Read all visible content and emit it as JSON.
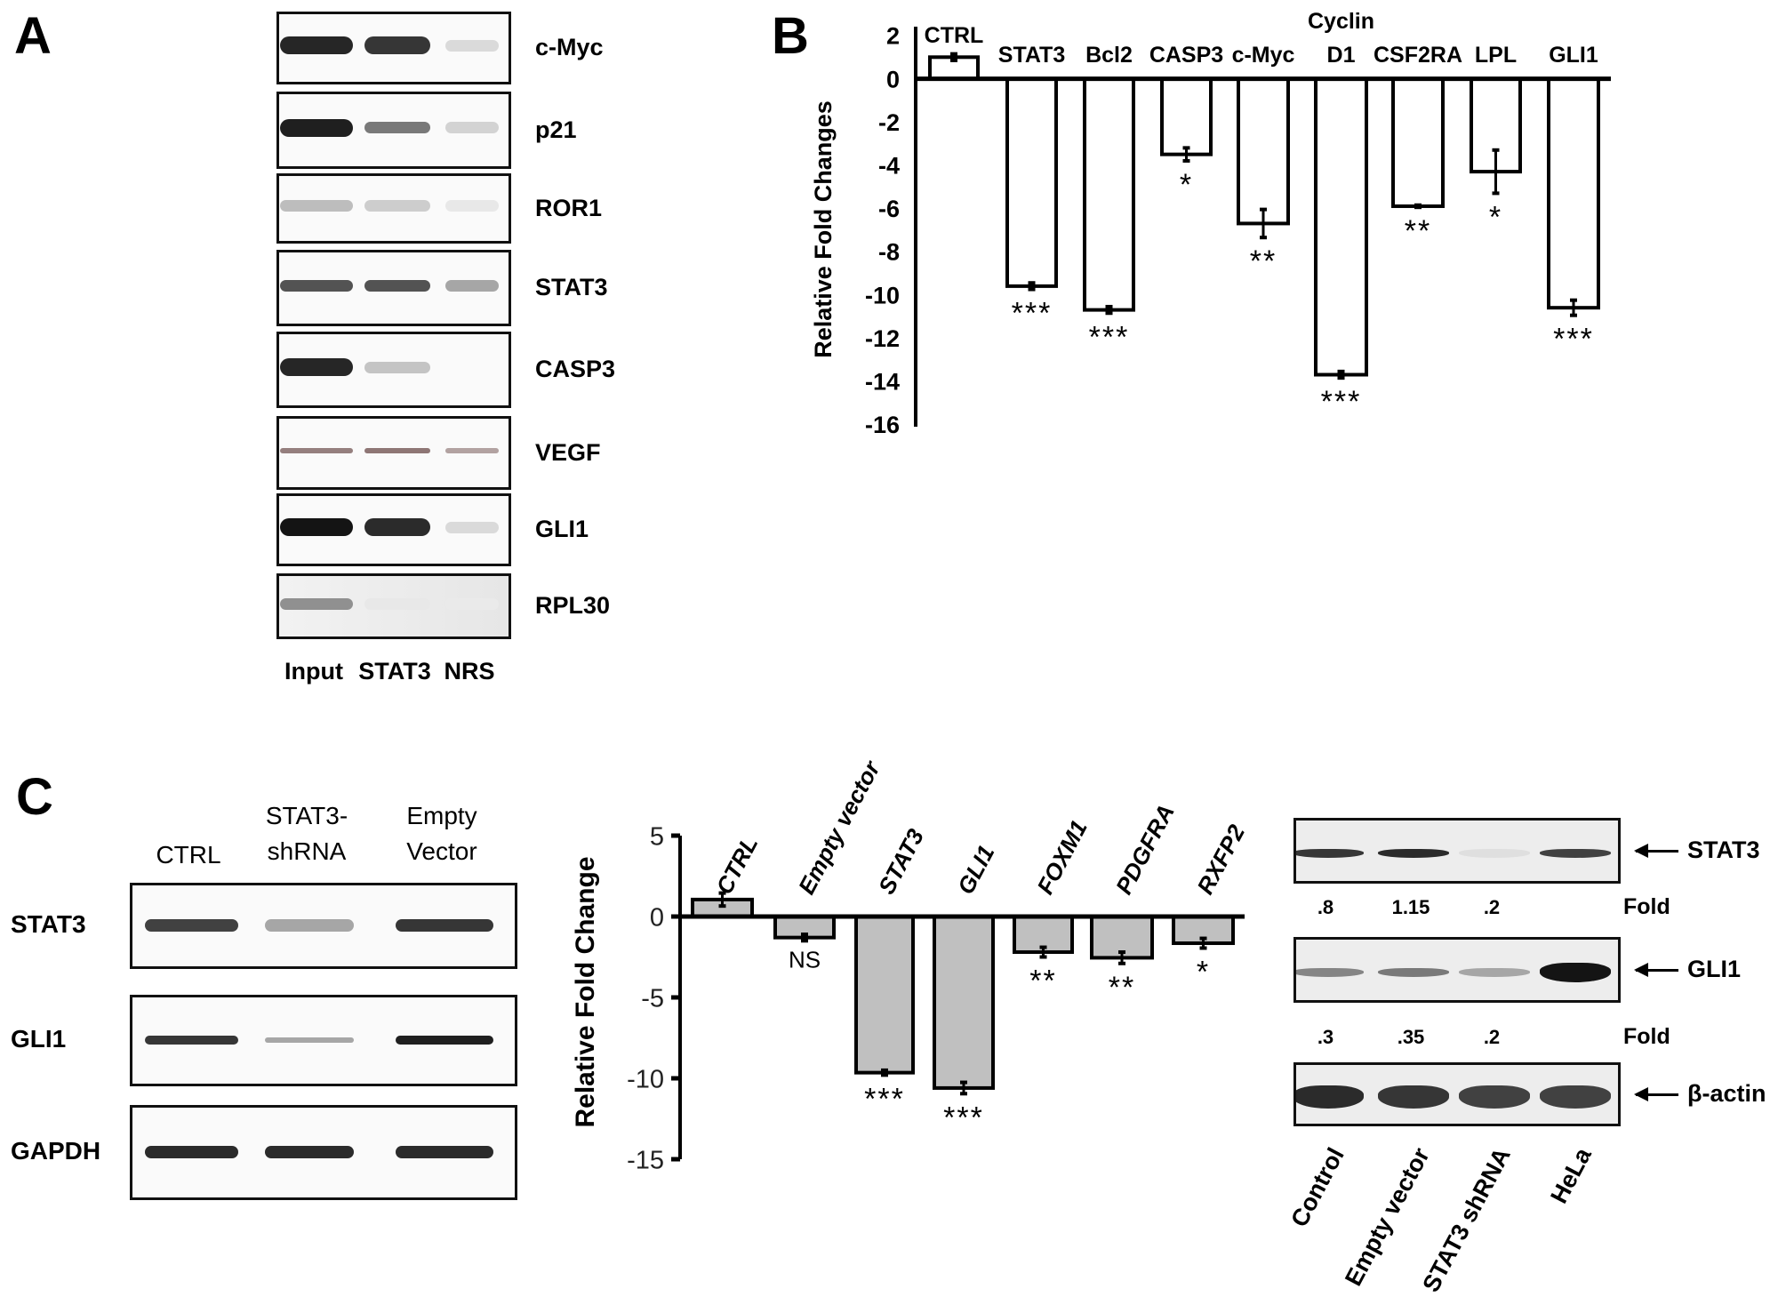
{
  "panels": {
    "A": {
      "letter": "A",
      "rows": [
        {
          "label": "c-Myc",
          "bands": [
            0.92,
            0.85,
            0.12
          ]
        },
        {
          "label": "p21",
          "bands": [
            0.95,
            0.55,
            0.15
          ]
        },
        {
          "label": "ROR1",
          "bands": [
            0.25,
            0.18,
            0.06
          ]
        },
        {
          "label": "STAT3",
          "bands": [
            0.72,
            0.72,
            0.35
          ]
        },
        {
          "label": "CASP3",
          "bands": [
            0.92,
            0.22,
            0.0
          ]
        },
        {
          "label": "VEGF",
          "bands": [
            0.7,
            0.75,
            0.5
          ]
        },
        {
          "label": "GLI1",
          "bands": [
            1.0,
            0.9,
            0.12
          ]
        },
        {
          "label": "RPL30",
          "bands": [
            0.45,
            0.06,
            0.05
          ]
        }
      ],
      "lanes": [
        "Input",
        "STAT3",
        "NRS"
      ]
    },
    "B": {
      "letter": "B"
    },
    "C": {
      "letter": "C",
      "left_blot": {
        "columns": [
          {
            "line1": "",
            "line2": "CTRL"
          },
          {
            "line1": "STAT3-",
            "line2": "shRNA"
          },
          {
            "line1": "Empty",
            "line2": "Vector"
          }
        ],
        "rows": [
          {
            "label": "STAT3",
            "bands": [
              0.8,
              0.35,
              0.85
            ]
          },
          {
            "label": "GLI1",
            "bands": [
              0.85,
              0.35,
              0.95
            ]
          },
          {
            "label": "GAPDH",
            "bands": [
              0.9,
              0.9,
              0.9
            ]
          }
        ]
      },
      "right_blot": {
        "rows": [
          {
            "label": "STAT3",
            "bands": [
              0.85,
              0.9,
              0.1,
              0.8
            ]
          },
          {
            "label": "GLI1",
            "bands": [
              0.5,
              0.55,
              0.35,
              1.0
            ]
          },
          {
            "label": "β-actin",
            "bands": [
              0.9,
              0.85,
              0.8,
              0.8
            ]
          }
        ],
        "fold_rows": [
          {
            "values": [
              ".8",
              "1.15",
              ".2"
            ],
            "label": "Fold"
          },
          {
            "values": [
              ".3",
              ".35",
              ".2"
            ],
            "label": "Fold"
          }
        ],
        "lanes": [
          "Control",
          "Empty vector",
          "STAT3 shRNA",
          "HeLa"
        ]
      }
    }
  },
  "chart_data": [
    {
      "id": "B",
      "type": "bar",
      "title": "",
      "xlabel": "",
      "ylabel": "Relative Fold Changes",
      "ylim": [
        -16,
        2
      ],
      "yticks": [
        2,
        0,
        -2,
        -4,
        -6,
        -8,
        -10,
        -12,
        -14,
        -16
      ],
      "grid": false,
      "legend": null,
      "bar_fill": "#ffffff",
      "categories": [
        "CTRL",
        "STAT3",
        "Bcl2",
        "CASP3",
        "c-Myc",
        "Cyclin D1",
        "CSF2RA",
        "LPL",
        "GLI1"
      ],
      "category_labels": [
        [
          "CTRL"
        ],
        [
          "STAT3"
        ],
        [
          "Bcl2"
        ],
        [
          "CASP3"
        ],
        [
          "c-Myc"
        ],
        [
          "Cyclin",
          "D1"
        ],
        [
          "CSF2RA"
        ],
        [
          "LPL"
        ],
        [
          "GLI1"
        ]
      ],
      "values": [
        1.0,
        -9.6,
        -10.7,
        -3.5,
        -6.7,
        -13.7,
        -5.9,
        -4.3,
        -10.6
      ],
      "errors": [
        0.15,
        0.15,
        0.15,
        0.3,
        0.65,
        0.15,
        0.05,
        1.0,
        0.35
      ],
      "significance": [
        "",
        "***",
        "***",
        "*",
        "**",
        "***",
        "**",
        "*",
        "***"
      ]
    },
    {
      "id": "C",
      "type": "bar",
      "title": "",
      "xlabel": "",
      "ylabel": "Relative Fold Change",
      "ylim": [
        -15,
        5
      ],
      "yticks": [
        5,
        0,
        -5,
        -10,
        -15
      ],
      "grid": false,
      "legend": null,
      "bar_fill": "#c0c0c0",
      "categories": [
        "CTRL",
        "Empty vector",
        "STAT3",
        "GLI1",
        "FOXM1",
        "PDGFRA",
        "RXFP2"
      ],
      "values": [
        1.05,
        -1.3,
        -9.65,
        -10.6,
        -2.2,
        -2.55,
        -1.65
      ],
      "errors": [
        0.4,
        0.2,
        0.15,
        0.35,
        0.3,
        0.35,
        0.3
      ],
      "significance": [
        "",
        "NS",
        "***",
        "***",
        "**",
        "**",
        "*"
      ]
    }
  ]
}
